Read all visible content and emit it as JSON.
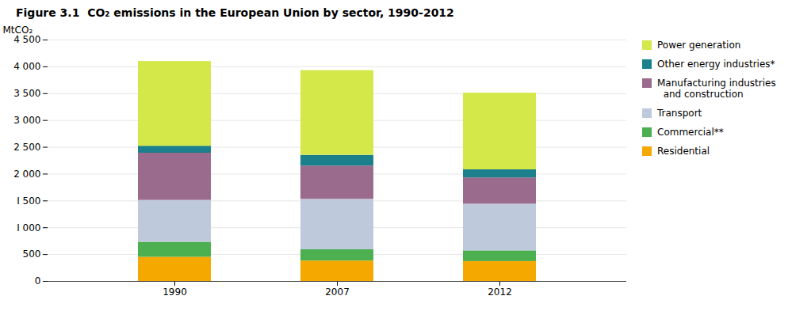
{
  "chart_data": {
    "type": "bar",
    "stacked": true,
    "title": "Figure 3.1  CO₂ emissions in the European Union by sector, 1990-2012",
    "ylabel": "MtCO₂",
    "categories": [
      "1990",
      "2007",
      "2012"
    ],
    "series": [
      {
        "name": "Residential",
        "color": "#F5A800",
        "values": [
          450,
          380,
          370
        ]
      },
      {
        "name": "Commercial**",
        "color": "#4CAF50",
        "values": [
          280,
          210,
          200
        ]
      },
      {
        "name": "Transport",
        "color": "#BFC9DC",
        "values": [
          780,
          940,
          870
        ]
      },
      {
        "name": "Manufacturing industries\n  and construction",
        "color": "#9B6B8E",
        "values": [
          880,
          620,
          490
        ]
      },
      {
        "name": "Other energy industries*",
        "color": "#1B7F8C",
        "values": [
          130,
          200,
          150
        ]
      },
      {
        "name": "Power generation",
        "color": "#D4E84A",
        "values": [
          1580,
          1580,
          1430
        ]
      }
    ],
    "ylim": [
      0,
      4500
    ],
    "yticks": [
      0,
      500,
      {
        "value": 1000,
        "label": "I 000"
      },
      {
        "value": 1500,
        "label": "I 500"
      },
      {
        "value": 2000,
        "label": "2 000"
      },
      {
        "value": 2500,
        "label": "2 500"
      },
      {
        "value": 3000,
        "label": "3 000"
      },
      {
        "value": 3500,
        "label": "3 500"
      },
      {
        "value": 4000,
        "label": "4 000"
      },
      {
        "value": 4500,
        "label": "4 500"
      }
    ],
    "grid": true,
    "legend": "right"
  }
}
